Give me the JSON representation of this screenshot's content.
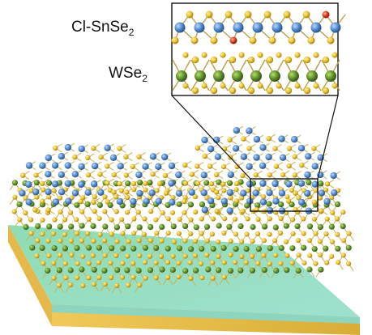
{
  "labels": {
    "top_layer": {
      "main": "Cl-SnSe",
      "sub": "2"
    },
    "bottom_layer": {
      "main": "WSe",
      "sub": "2"
    }
  },
  "colors": {
    "background": "#ffffff",
    "se_atom": "#e7bd2a",
    "sn_atom": "#4f87c9",
    "w_atom": "#5f8f2a",
    "cl_atom": "#d23a1a",
    "bond": "#c8b25a",
    "substrate_top": "#7fd3a8",
    "substrate_mid": "#9fdcc0",
    "substrate_base": "#f0c95a",
    "inset_frame": "#111111"
  }
}
